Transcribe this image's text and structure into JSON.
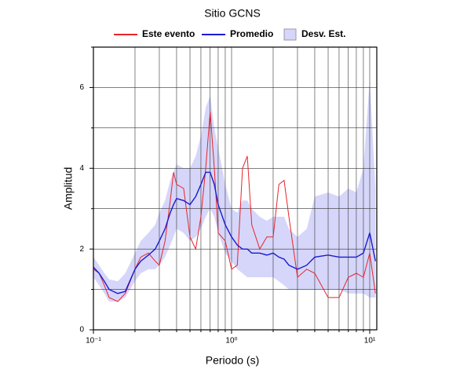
{
  "chart_data": {
    "type": "line",
    "title": "Sitio GCNS",
    "x_label": "Periodo (s)",
    "y_label": "Amplitud",
    "log_x": true,
    "grid": true,
    "legend": "top",
    "xlim": [
      0.1,
      11.25
    ],
    "ylim": [
      0,
      7
    ],
    "xticks": [
      {
        "value": 0.1,
        "label": "10⁻¹"
      },
      {
        "value": 1,
        "label": "10⁰"
      },
      {
        "value": 10,
        "label": "10¹"
      }
    ],
    "xminor": [
      0.2,
      0.3,
      0.4,
      0.5,
      0.6,
      0.7,
      0.8,
      0.9,
      2,
      3,
      4,
      5,
      6,
      7,
      8,
      9
    ],
    "yticks": [
      0,
      2,
      4,
      6
    ],
    "yminor": [
      1,
      3,
      5,
      7
    ],
    "x": [
      0.1,
      0.11,
      0.12,
      0.13,
      0.15,
      0.17,
      0.2,
      0.22,
      0.25,
      0.28,
      0.3,
      0.33,
      0.36,
      0.38,
      0.4,
      0.45,
      0.5,
      0.55,
      0.6,
      0.65,
      0.7,
      0.75,
      0.8,
      0.9,
      1.0,
      1.1,
      1.2,
      1.3,
      1.4,
      1.6,
      1.8,
      2.0,
      2.2,
      2.4,
      2.6,
      3.0,
      3.5,
      4,
      5,
      6,
      7,
      8,
      9,
      10,
      11
    ],
    "band": {
      "name": "Desv. Est.",
      "color": "#d6d6fa",
      "lower": [
        1.3,
        1.1,
        0.9,
        0.7,
        0.7,
        0.8,
        1.2,
        1.4,
        1.5,
        1.5,
        1.6,
        1.8,
        2.1,
        2.3,
        2.5,
        2.4,
        2.2,
        2.3,
        2.5,
        2.8,
        3.0,
        2.8,
        2.4,
        1.9,
        1.7,
        1.5,
        1.4,
        1.3,
        1.3,
        1.3,
        1.3,
        1.3,
        1.2,
        1.1,
        1.0,
        1.0,
        1.0,
        1.0,
        1.0,
        1.0,
        0.9,
        0.9,
        0.9,
        0.8,
        0.8
      ],
      "upper": [
        1.8,
        1.6,
        1.4,
        1.25,
        1.2,
        1.4,
        1.9,
        2.2,
        2.4,
        2.6,
        2.9,
        3.2,
        3.7,
        3.9,
        4.1,
        4.0,
        4.0,
        4.3,
        4.8,
        5.5,
        5.8,
        5.0,
        4.5,
        3.6,
        3.0,
        2.9,
        3.2,
        3.2,
        3.0,
        2.8,
        2.7,
        2.8,
        2.8,
        2.8,
        2.5,
        2.3,
        2.5,
        3.3,
        3.4,
        3.3,
        3.5,
        3.4,
        4.0,
        6.2,
        3.5
      ]
    },
    "series": [
      {
        "name": "Este evento",
        "color": "#e8242c",
        "values": [
          1.5,
          1.4,
          1.1,
          0.8,
          0.7,
          0.9,
          1.5,
          1.8,
          1.9,
          1.7,
          1.6,
          2.2,
          3.2,
          3.9,
          3.6,
          3.5,
          2.3,
          2.0,
          2.8,
          4.0,
          5.4,
          4.0,
          2.4,
          2.2,
          1.5,
          1.6,
          4.0,
          4.3,
          2.6,
          2.0,
          2.3,
          2.3,
          3.6,
          3.7,
          2.8,
          1.3,
          1.5,
          1.4,
          0.8,
          0.8,
          1.3,
          1.4,
          1.3,
          1.9,
          0.9
        ]
      },
      {
        "name": "Promedio",
        "color": "#1a1ad0",
        "values": [
          1.55,
          1.4,
          1.2,
          1.0,
          0.9,
          0.95,
          1.5,
          1.7,
          1.85,
          2.0,
          2.2,
          2.5,
          2.9,
          3.1,
          3.25,
          3.2,
          3.1,
          3.3,
          3.6,
          3.9,
          3.9,
          3.6,
          3.1,
          2.6,
          2.3,
          2.1,
          2.0,
          2.0,
          1.9,
          1.9,
          1.85,
          1.9,
          1.8,
          1.75,
          1.6,
          1.5,
          1.6,
          1.8,
          1.85,
          1.8,
          1.8,
          1.8,
          1.9,
          2.4,
          1.7
        ]
      }
    ]
  }
}
